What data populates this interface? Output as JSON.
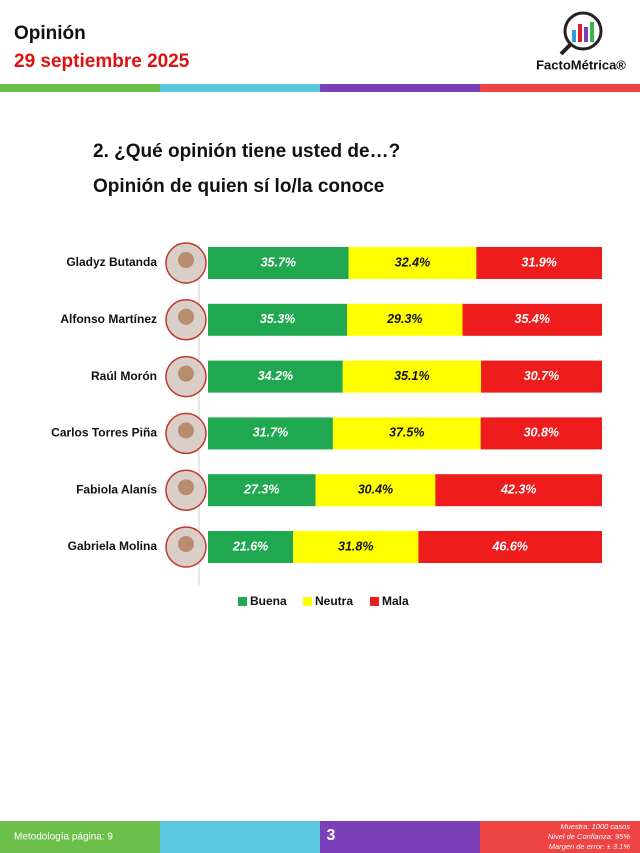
{
  "header": {
    "section": "Opinión",
    "date": "29 septiembre 2025",
    "logo": "FactoMétrica®"
  },
  "chart_data": {
    "type": "stacked-barh",
    "title": "2. ¿Qué opinión tiene usted de…?",
    "subtitle": "Opinión de quien sí lo/la conoce",
    "categories": [
      "Gladyz Butanda",
      "Alfonso Martínez",
      "Raúl Morón",
      "Carlos Torres Piña",
      "Fabiola Alanís",
      "Gabriela Molina"
    ],
    "xlim": [
      0,
      100
    ],
    "legend": "bottom",
    "series": [
      {
        "name": "Buena",
        "color": "#1fa84f",
        "values": [
          35.7,
          35.3,
          34.2,
          31.7,
          27.3,
          21.6
        ],
        "value_labels": [
          "35.7%",
          "35.3%",
          "34.2%",
          "31.7%",
          "27.3%",
          "21.6%"
        ]
      },
      {
        "name": "Neutra",
        "color": "#ffff00",
        "values": [
          32.4,
          29.3,
          35.1,
          37.5,
          30.4,
          31.8
        ],
        "value_labels": [
          "32.4%",
          "29.3%",
          "35.1%",
          "37.5%",
          "30.4%",
          "31.8%"
        ]
      },
      {
        "name": "Mala",
        "color": "#ee1c1c",
        "values": [
          31.9,
          35.4,
          30.7,
          30.8,
          42.3,
          46.6
        ],
        "value_labels": [
          "31.9%",
          "35.4%",
          "30.7%",
          "30.8%",
          "42.3%",
          "46.6%"
        ]
      }
    ]
  },
  "footer": {
    "methodology": "Metodología página: 9",
    "page": "3",
    "notes": [
      "Muestra: 1000 casos",
      "Nivel de Confianza: 95%",
      "Margen de error: ± 3.1%"
    ]
  }
}
